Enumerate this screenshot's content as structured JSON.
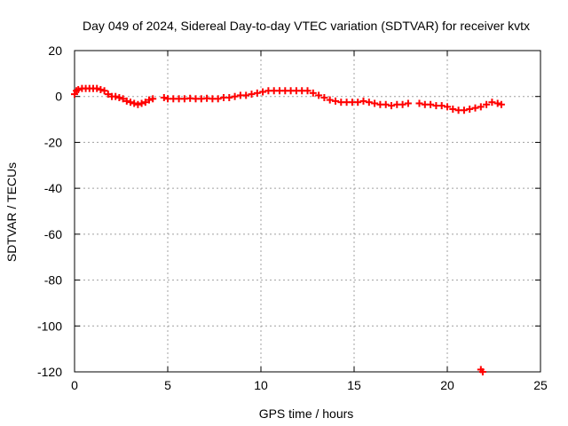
{
  "chart_data": {
    "type": "scatter",
    "title": "Day 049 of 2024, Sidereal Day-to-day VTEC variation (SDTVAR) for receiver kvtx",
    "xlabel": "GPS time / hours",
    "ylabel": "SDTVAR / TECUs",
    "xlim": [
      0,
      25
    ],
    "ylim": [
      -120,
      20
    ],
    "xticks": [
      0,
      5,
      10,
      15,
      20,
      25
    ],
    "yticks": [
      20,
      0,
      -20,
      -40,
      -60,
      -80,
      -100,
      -120
    ],
    "grid": true,
    "series": [
      {
        "name": "SDTVAR",
        "color": "#ff0000",
        "marker": "plus",
        "points": [
          [
            0.0,
            1.0
          ],
          [
            0.1,
            2.5
          ],
          [
            0.2,
            3.0
          ],
          [
            0.4,
            3.5
          ],
          [
            0.6,
            3.5
          ],
          [
            0.8,
            3.5
          ],
          [
            1.0,
            3.5
          ],
          [
            1.2,
            3.5
          ],
          [
            1.4,
            3.0
          ],
          [
            1.6,
            2.5
          ],
          [
            1.8,
            1.0
          ],
          [
            2.0,
            0.0
          ],
          [
            2.2,
            0.0
          ],
          [
            2.4,
            -0.5
          ],
          [
            2.6,
            -1.0
          ],
          [
            2.8,
            -2.0
          ],
          [
            3.0,
            -2.5
          ],
          [
            3.2,
            -3.0
          ],
          [
            3.4,
            -3.5
          ],
          [
            3.6,
            -3.0
          ],
          [
            3.8,
            -2.5
          ],
          [
            4.0,
            -1.5
          ],
          [
            4.2,
            -1.0
          ],
          [
            4.8,
            -0.5
          ],
          [
            5.0,
            -1.0
          ],
          [
            5.3,
            -1.0
          ],
          [
            5.6,
            -1.0
          ],
          [
            5.9,
            -1.0
          ],
          [
            6.2,
            -0.8
          ],
          [
            6.5,
            -1.0
          ],
          [
            6.8,
            -1.0
          ],
          [
            7.1,
            -0.8
          ],
          [
            7.4,
            -1.0
          ],
          [
            7.7,
            -1.0
          ],
          [
            8.0,
            -0.5
          ],
          [
            8.3,
            -0.5
          ],
          [
            8.6,
            0.0
          ],
          [
            8.9,
            0.5
          ],
          [
            9.2,
            0.5
          ],
          [
            9.5,
            1.0
          ],
          [
            9.8,
            1.5
          ],
          [
            10.1,
            2.0
          ],
          [
            10.4,
            2.5
          ],
          [
            10.7,
            2.5
          ],
          [
            11.0,
            2.5
          ],
          [
            11.3,
            2.5
          ],
          [
            11.6,
            2.5
          ],
          [
            11.9,
            2.5
          ],
          [
            12.2,
            2.5
          ],
          [
            12.5,
            2.5
          ],
          [
            12.8,
            1.5
          ],
          [
            13.1,
            0.5
          ],
          [
            13.4,
            -0.5
          ],
          [
            13.7,
            -1.5
          ],
          [
            14.0,
            -2.0
          ],
          [
            14.3,
            -2.5
          ],
          [
            14.6,
            -2.5
          ],
          [
            14.9,
            -2.5
          ],
          [
            15.2,
            -2.5
          ],
          [
            15.5,
            -2.0
          ],
          [
            15.8,
            -2.5
          ],
          [
            16.1,
            -3.0
          ],
          [
            16.4,
            -3.5
          ],
          [
            16.7,
            -3.5
          ],
          [
            17.0,
            -4.0
          ],
          [
            17.3,
            -3.5
          ],
          [
            17.6,
            -3.5
          ],
          [
            17.9,
            -3.0
          ],
          [
            18.5,
            -3.0
          ],
          [
            18.8,
            -3.5
          ],
          [
            19.1,
            -3.5
          ],
          [
            19.4,
            -4.0
          ],
          [
            19.7,
            -4.0
          ],
          [
            20.0,
            -4.5
          ],
          [
            20.3,
            -5.5
          ],
          [
            20.6,
            -6.0
          ],
          [
            20.9,
            -6.0
          ],
          [
            21.2,
            -5.5
          ],
          [
            21.5,
            -5.0
          ],
          [
            21.8,
            -4.5
          ],
          [
            22.1,
            -3.5
          ],
          [
            22.4,
            -2.5
          ],
          [
            22.7,
            -3.0
          ],
          [
            22.9,
            -3.5
          ],
          [
            21.8,
            -119.0
          ],
          [
            21.9,
            -120.0
          ]
        ]
      }
    ]
  }
}
